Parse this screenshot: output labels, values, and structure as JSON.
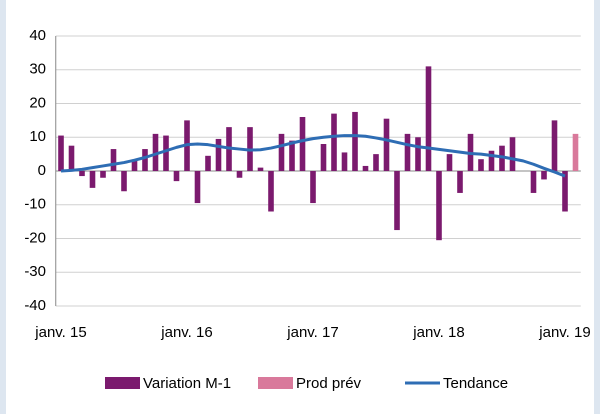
{
  "chart_data": {
    "type": "bar_line",
    "categories": [
      "janv. 15",
      null,
      null,
      null,
      null,
      null,
      null,
      null,
      null,
      null,
      null,
      null,
      "janv. 16",
      null,
      null,
      null,
      null,
      null,
      null,
      null,
      null,
      null,
      null,
      null,
      "janv. 17",
      null,
      null,
      null,
      null,
      null,
      null,
      null,
      null,
      null,
      null,
      null,
      "janv. 18",
      null,
      null,
      null,
      null,
      null,
      null,
      null,
      null,
      null,
      null,
      null,
      "janv. 19",
      null
    ],
    "series": [
      {
        "name": "Variation M-1",
        "color": "#7b1a6e",
        "kind": "bar",
        "values": [
          10.5,
          7.5,
          -1.5,
          -5,
          -2,
          6.5,
          -6,
          3,
          6.5,
          11,
          10.5,
          -3,
          15,
          -9.5,
          4.5,
          9.5,
          13,
          -2,
          13,
          1,
          -12,
          11,
          9,
          16,
          -9.5,
          8,
          17,
          5.5,
          17.5,
          1.5,
          5,
          15.5,
          -17.5,
          11,
          10,
          31,
          -20.5,
          5,
          -6.5,
          11,
          3.5,
          6,
          7.5,
          10,
          0,
          -6.5,
          -2.5,
          15,
          -12,
          null
        ]
      },
      {
        "name": "Prod prév",
        "color": "#d9799b",
        "kind": "bar",
        "values": [
          null,
          null,
          null,
          null,
          null,
          null,
          null,
          null,
          null,
          null,
          null,
          null,
          null,
          null,
          null,
          null,
          null,
          null,
          null,
          null,
          null,
          null,
          null,
          null,
          null,
          null,
          null,
          null,
          null,
          null,
          null,
          null,
          null,
          null,
          null,
          null,
          null,
          null,
          null,
          null,
          null,
          null,
          null,
          null,
          null,
          null,
          null,
          null,
          null,
          11
        ]
      },
      {
        "name": "Tendance",
        "color": "#2e6db4",
        "kind": "line",
        "values": [
          0,
          0.2,
          0.5,
          1,
          1.5,
          2,
          2.5,
          3.2,
          4,
          5,
          6,
          7,
          7.8,
          8,
          7.8,
          7.3,
          6.8,
          6.5,
          6.2,
          6.3,
          6.8,
          7.5,
          8.3,
          9,
          9.6,
          10,
          10.3,
          10.5,
          10.5,
          10.3,
          9.8,
          9.2,
          8.5,
          7.8,
          7.2,
          6.8,
          6.4,
          6,
          5.6,
          5.2,
          5,
          4.6,
          4.2,
          3.6,
          3,
          2,
          0.8,
          -0.3,
          -1.5,
          null
        ]
      }
    ],
    "ylim": [
      -40,
      40
    ],
    "yticks": [
      -40,
      -30,
      -20,
      -10,
      0,
      10,
      20,
      30,
      40
    ],
    "grid": true
  }
}
